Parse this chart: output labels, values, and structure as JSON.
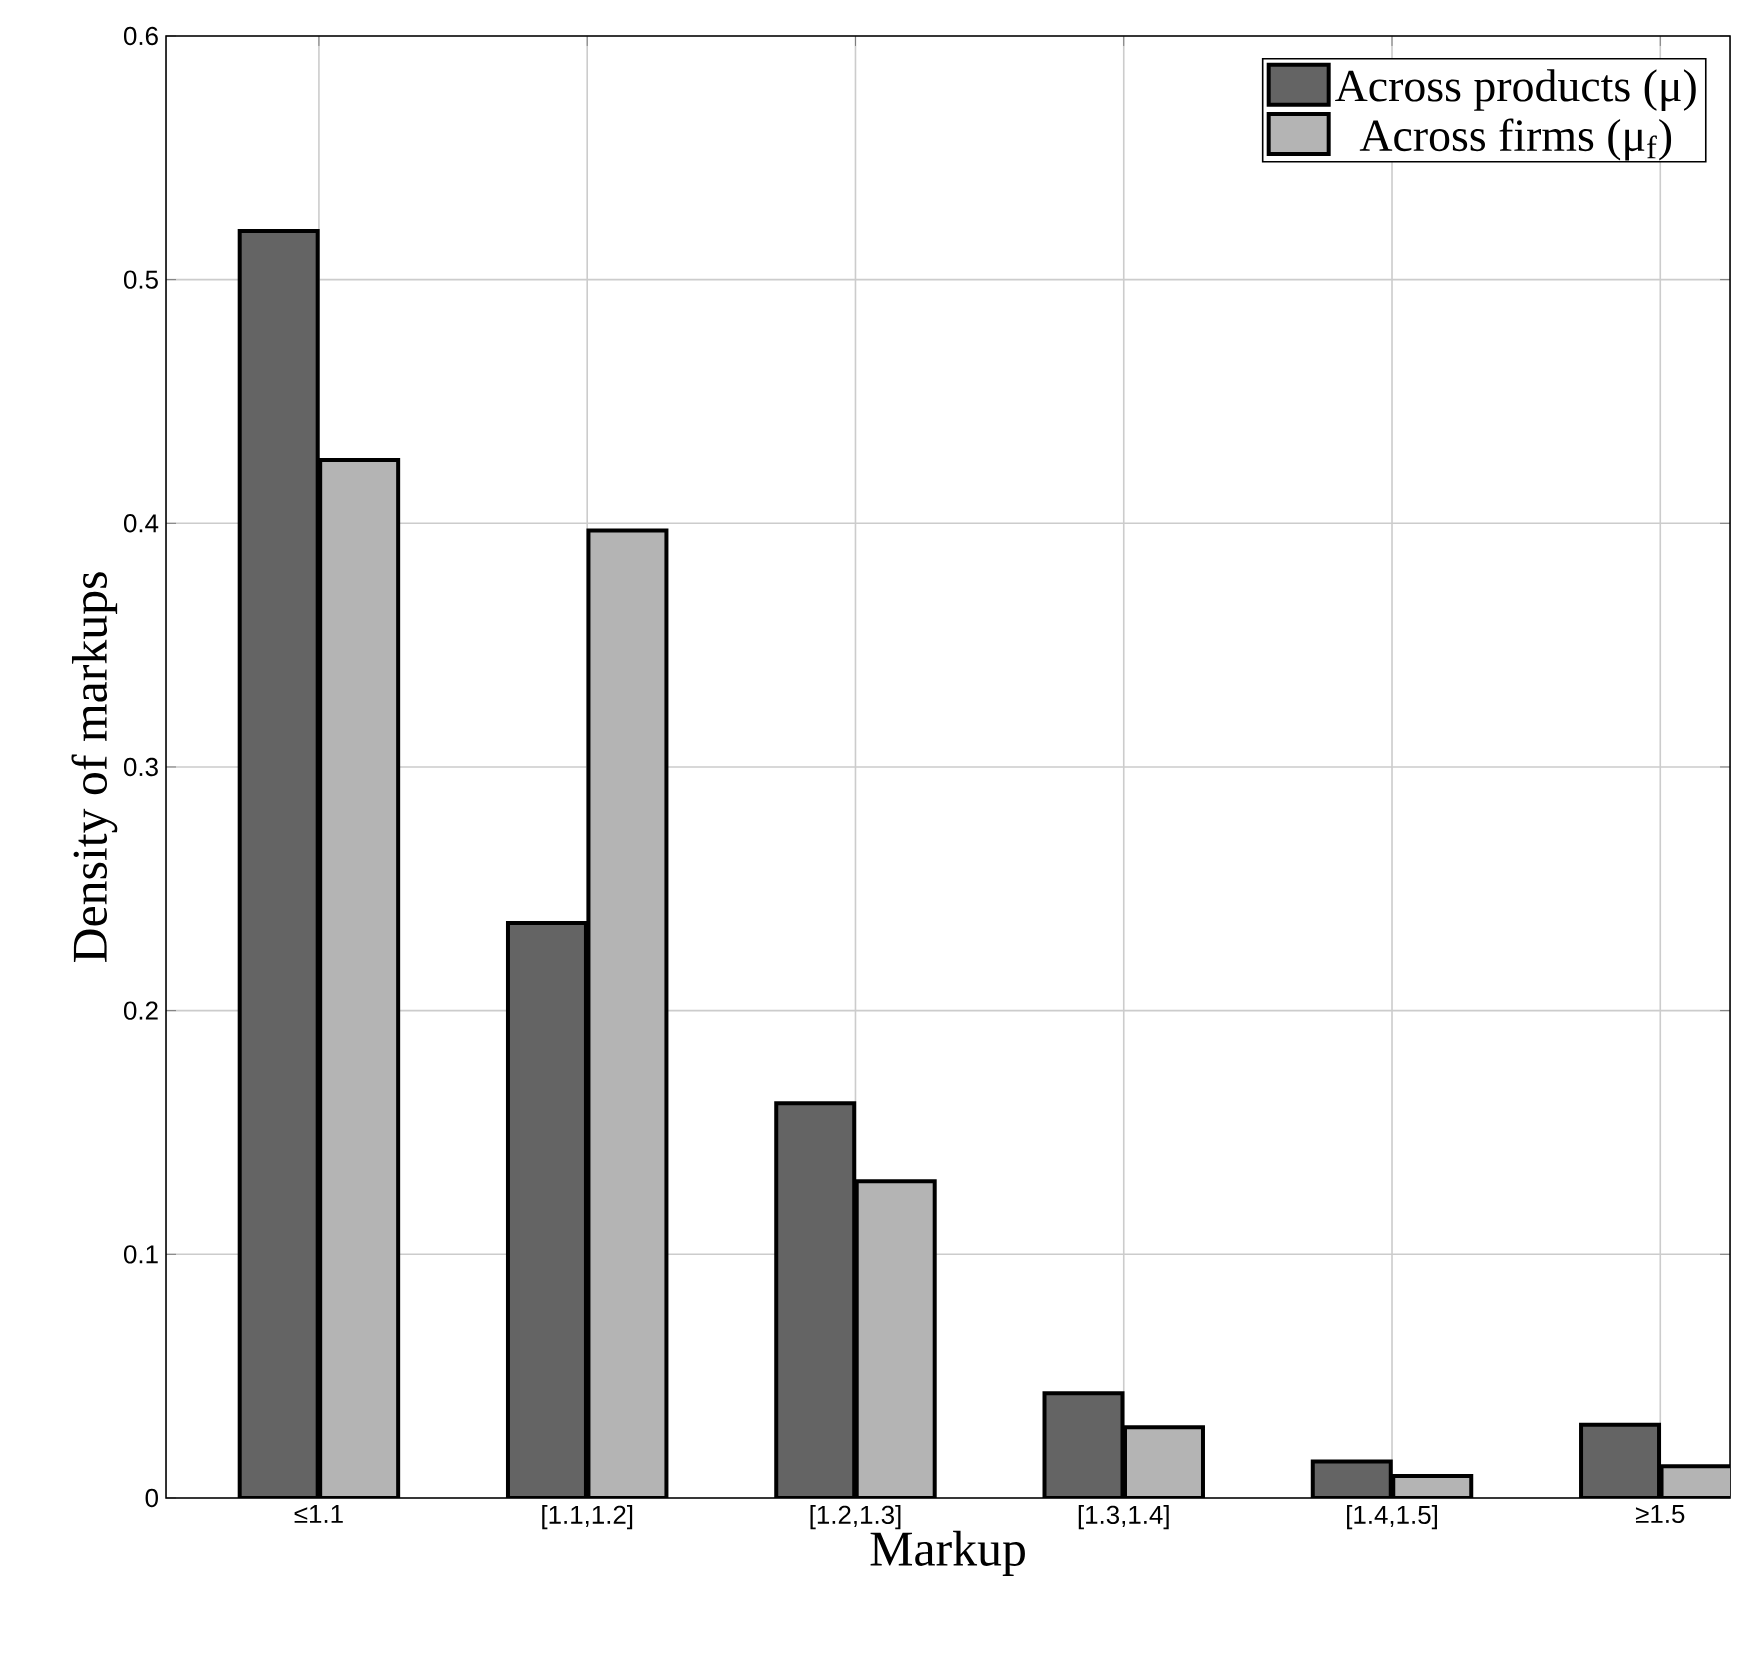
{
  "chart_data": {
    "type": "bar",
    "xlabel": "Markup",
    "ylabel": "Density of markups",
    "categories": [
      "≤1.1",
      "[1.1,1.2]",
      "[1.2,1.3]",
      "[1.3,1.4]",
      "[1.4,1.5]",
      "≥1.5"
    ],
    "series": [
      {
        "name": "Across products (μ)",
        "color": "#646464",
        "values": [
          0.52,
          0.236,
          0.162,
          0.043,
          0.015,
          0.03
        ]
      },
      {
        "name": "Across firms (μ$_{f}$)",
        "color": "#b4b4b4",
        "values": [
          0.426,
          0.397,
          0.13,
          0.029,
          0.009,
          0.013
        ]
      }
    ],
    "ylim": [
      0,
      0.6
    ],
    "yticks": [
      0,
      0.1,
      0.2,
      0.3,
      0.4,
      0.5,
      0.6
    ],
    "grid": true,
    "legend": "top right"
  }
}
